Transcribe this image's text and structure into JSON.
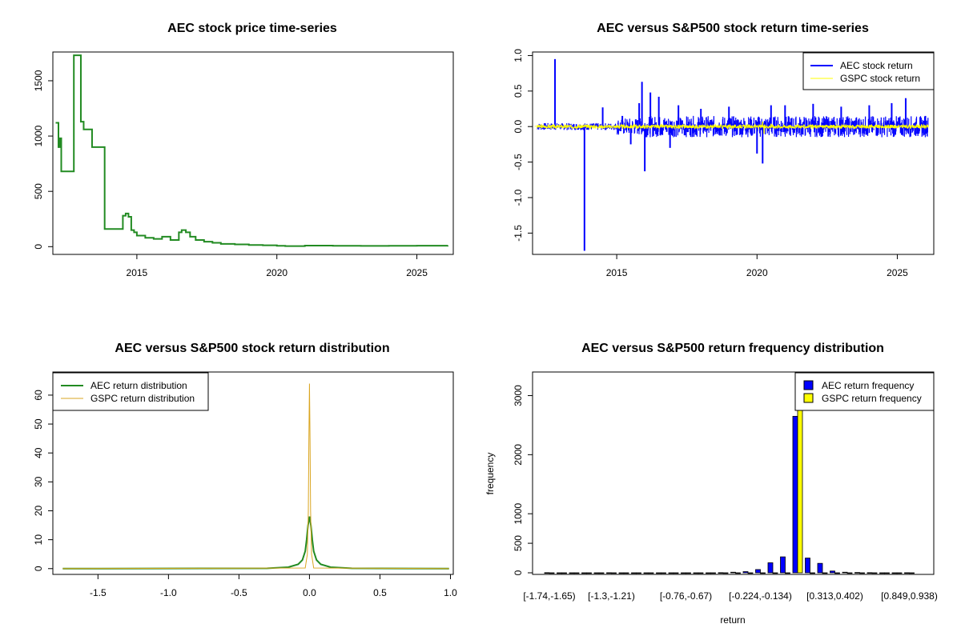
{
  "chart_data": [
    {
      "type": "line",
      "title": "AEC stock price time-series",
      "xlabel": "",
      "ylabel": "",
      "xlim": [
        2012.0,
        2026.3
      ],
      "ylim": [
        -70,
        1760
      ],
      "xticks": [
        2015,
        2020,
        2025
      ],
      "yticks": [
        0,
        500,
        1000,
        1500
      ],
      "colors": {
        "line": "#228B22"
      },
      "series": [
        {
          "step": true,
          "x": [
            2012.1,
            2012.2,
            2012.25,
            2012.3,
            2012.4,
            2012.75,
            2012.8,
            2013.0,
            2013.1,
            2013.2,
            2013.4,
            2013.7,
            2013.85,
            2014.0,
            2014.5,
            2014.6,
            2014.7,
            2014.8,
            2014.9,
            2015.0,
            2015.3,
            2015.6,
            2015.9,
            2016.2,
            2016.5,
            2016.6,
            2016.75,
            2016.9,
            2017.1,
            2017.4,
            2017.7,
            2018.0,
            2018.5,
            2019.0,
            2019.5,
            2020.0,
            2020.3,
            2021.0,
            2022.0,
            2023.0,
            2024.0,
            2025.0,
            2026.1
          ],
          "y": [
            1120,
            900,
            980,
            680,
            680,
            1730,
            1730,
            1130,
            1060,
            1060,
            900,
            900,
            160,
            160,
            280,
            300,
            270,
            150,
            130,
            100,
            80,
            70,
            90,
            60,
            130,
            150,
            130,
            90,
            60,
            45,
            35,
            25,
            20,
            15,
            12,
            8,
            5,
            10,
            8,
            7,
            8,
            9,
            12
          ]
        }
      ]
    },
    {
      "type": "line",
      "title": "AEC versus S&P500 stock return time-series",
      "xlabel": "",
      "ylabel": "",
      "xlim": [
        2012.0,
        2026.3
      ],
      "ylim": [
        -1.8,
        1.05
      ],
      "xticks": [
        2015,
        2020,
        2025
      ],
      "yticks": [
        1.0,
        0.5,
        0.0,
        -0.5,
        -1.0,
        -1.5
      ],
      "ytick_labels": [
        "1.0",
        "0.5",
        "0.0",
        "-0.5",
        "-1.0",
        "-1.5"
      ],
      "legend_position": "top-right",
      "series": [
        {
          "name": "AEC stock return",
          "color": "#0000FF",
          "style": "spikes",
          "spikes": [
            [
              2012.8,
              0.95
            ],
            [
              2013.85,
              -1.75
            ],
            [
              2014.5,
              0.27
            ],
            [
              2015.2,
              0.15
            ],
            [
              2015.5,
              -0.25
            ],
            [
              2015.8,
              0.33
            ],
            [
              2015.9,
              0.63
            ],
            [
              2016.0,
              -0.63
            ],
            [
              2016.2,
              0.48
            ],
            [
              2016.5,
              0.42
            ],
            [
              2016.9,
              -0.3
            ],
            [
              2017.2,
              0.3
            ],
            [
              2018.0,
              0.25
            ],
            [
              2019.0,
              0.28
            ],
            [
              2020.0,
              -0.38
            ],
            [
              2020.2,
              -0.52
            ],
            [
              2020.5,
              0.3
            ],
            [
              2021.0,
              0.3
            ],
            [
              2022.0,
              0.32
            ],
            [
              2023.0,
              0.28
            ],
            [
              2024.0,
              0.3
            ],
            [
              2024.8,
              0.33
            ],
            [
              2025.3,
              0.4
            ],
            [
              2026.0,
              0.15
            ]
          ]
        },
        {
          "name": "GSPC stock return",
          "color": "#FFFF00",
          "style": "noise",
          "points": [
            [
              2012.1,
              0.01
            ],
            [
              2014.0,
              -0.01
            ],
            [
              2015.6,
              0.03
            ],
            [
              2016.0,
              -0.03
            ],
            [
              2018.0,
              0.02
            ],
            [
              2020.2,
              0.07
            ],
            [
              2020.25,
              -0.1
            ],
            [
              2020.5,
              0.04
            ],
            [
              2022.0,
              -0.03
            ],
            [
              2024.0,
              0.02
            ],
            [
              2026.1,
              0.01
            ]
          ]
        }
      ]
    },
    {
      "type": "line",
      "title": "AEC versus S&P500 stock return distribution",
      "xlabel": "",
      "ylabel": "",
      "xlim": [
        -1.82,
        1.02
      ],
      "ylim": [
        -2,
        68
      ],
      "xticks": [
        -1.5,
        -1.0,
        -0.5,
        0.0,
        0.5,
        1.0
      ],
      "xtick_labels": [
        "-1.5",
        "-1.0",
        "-0.5",
        "0.0",
        "0.5",
        "1.0"
      ],
      "yticks": [
        0,
        10,
        20,
        30,
        40,
        50,
        60
      ],
      "legend_position": "top-left",
      "series": [
        {
          "name": "AEC return distribution",
          "color": "#228B22",
          "x": [
            -1.75,
            -0.3,
            -0.15,
            -0.08,
            -0.05,
            -0.03,
            -0.02,
            -0.01,
            0.0,
            0.01,
            0.02,
            0.03,
            0.05,
            0.08,
            0.15,
            0.3,
            0.99
          ],
          "y": [
            0,
            0.1,
            0.5,
            1.5,
            3,
            6,
            10,
            15,
            18,
            15,
            10,
            6,
            3,
            1.5,
            0.5,
            0.1,
            0
          ]
        },
        {
          "name": "GSPC return distribution",
          "color": "#DAA520",
          "x": [
            -1.75,
            -0.03,
            -0.015,
            -0.008,
            -0.004,
            0.0,
            0.004,
            0.008,
            0.015,
            0.03,
            0.99
          ],
          "y": [
            0,
            0.2,
            5,
            20,
            45,
            64,
            45,
            20,
            5,
            0.2,
            0
          ]
        }
      ]
    },
    {
      "type": "bar",
      "title": "AEC versus S&P500 return frequency distribution",
      "xlabel": "return",
      "ylabel": "frequency",
      "ylim": [
        0,
        3400
      ],
      "yticks": [
        0,
        500,
        1000,
        2000,
        3000
      ],
      "legend_position": "top-right",
      "x_labels": [
        "[-1.74,-1.65)",
        "[-1.3,-1.21)",
        "[-0.76,-0.67)",
        "[-0.224,-0.134)",
        "[0.313,0.402)",
        "[0.849,0.938)"
      ],
      "x_label_bins": [
        0,
        5,
        11,
        17,
        23,
        29
      ],
      "bin_count": 30,
      "series": [
        {
          "name": "AEC return frequency",
          "color": "#0000FF",
          "values": [
            2,
            0,
            0,
            0,
            0,
            1,
            0,
            0,
            0,
            0,
            0,
            0,
            0,
            0,
            2,
            10,
            20,
            55,
            170,
            270,
            2650,
            250,
            160,
            30,
            10,
            5,
            2,
            0,
            0,
            1
          ]
        },
        {
          "name": "GSPC return frequency",
          "color": "#FFFF00",
          "values": [
            0,
            0,
            0,
            0,
            0,
            0,
            0,
            0,
            0,
            0,
            0,
            0,
            0,
            0,
            0,
            0,
            0,
            0,
            0,
            0,
            3500,
            0,
            0,
            0,
            0,
            0,
            0,
            0,
            0,
            0
          ]
        }
      ]
    }
  ]
}
